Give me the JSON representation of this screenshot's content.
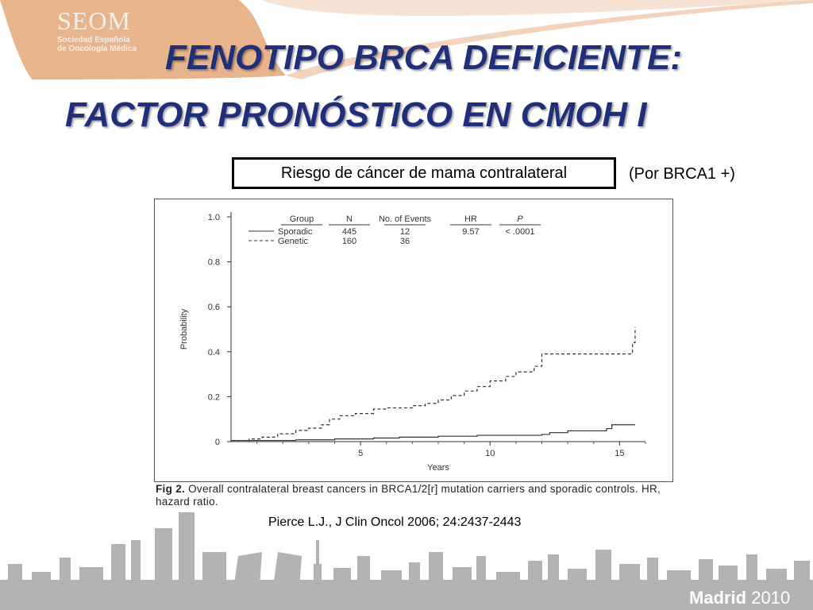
{
  "logo": {
    "name": "SEOM",
    "line1": "Sociedad Española",
    "line2": "de Oncología Médica"
  },
  "title": {
    "line1": "FENOTIPO BRCA DEFICIENTE:",
    "line2": "FACTOR PRONÓSTICO EN CMOH I"
  },
  "risk_label": "Riesgo de cáncer de mama contralateral",
  "risk_note": "(Por BRCA1 +)",
  "caption": {
    "fig": "Fig 2.",
    "text": "Overall contralateral breast cancers in BRCA1/2[r] mutation carriers and sporadic controls. HR, hazard ratio."
  },
  "reference": "Pierce L.J., J Clin Oncol  2006; 24:2437-2443",
  "event": {
    "city": "Madrid",
    "year": "2010"
  },
  "colors": {
    "title": "#1f2f7a",
    "logo_band": "#e8b48c",
    "skyline": "#a7a7a7"
  },
  "chart_data": {
    "type": "line",
    "xlabel": "Years",
    "ylabel": "Probability",
    "xlim": [
      0,
      16
    ],
    "ylim": [
      0,
      1.0
    ],
    "x_ticks": [
      "5",
      "10",
      "15"
    ],
    "y_ticks": [
      "0",
      "0.2",
      "0.4",
      "0.6",
      "0.8",
      "1.0"
    ],
    "legend_table": {
      "headers": [
        "Group",
        "N",
        "No. of Events",
        "HR",
        "P"
      ],
      "rows": [
        [
          "Sporadic",
          "445",
          "12",
          "9.57",
          "< .0001"
        ],
        [
          "Genetic",
          "160",
          "36",
          "",
          ""
        ]
      ]
    },
    "series": [
      {
        "name": "Sporadic",
        "style": "solid",
        "x": [
          0,
          2.5,
          4.0,
          5.5,
          6.5,
          8.0,
          9.5,
          12.0,
          12.3,
          13.0,
          14.5,
          14.7,
          15.6
        ],
        "y": [
          0.005,
          0.008,
          0.012,
          0.016,
          0.02,
          0.024,
          0.028,
          0.032,
          0.04,
          0.048,
          0.058,
          0.075,
          0.075
        ]
      },
      {
        "name": "Genetic",
        "style": "dashed",
        "x": [
          0,
          0.7,
          1.2,
          1.8,
          2.5,
          3.0,
          3.5,
          3.8,
          4.2,
          4.8,
          5.5,
          6.0,
          7.0,
          7.5,
          8.0,
          8.5,
          9.0,
          9.5,
          10.0,
          10.6,
          11.0,
          11.7,
          12.0,
          13.0,
          15.0,
          15.5,
          15.6
        ],
        "y": [
          0.005,
          0.012,
          0.02,
          0.035,
          0.05,
          0.06,
          0.075,
          0.1,
          0.115,
          0.125,
          0.145,
          0.15,
          0.16,
          0.17,
          0.185,
          0.205,
          0.225,
          0.245,
          0.27,
          0.29,
          0.31,
          0.335,
          0.39,
          0.39,
          0.39,
          0.44,
          0.51
        ]
      }
    ]
  }
}
